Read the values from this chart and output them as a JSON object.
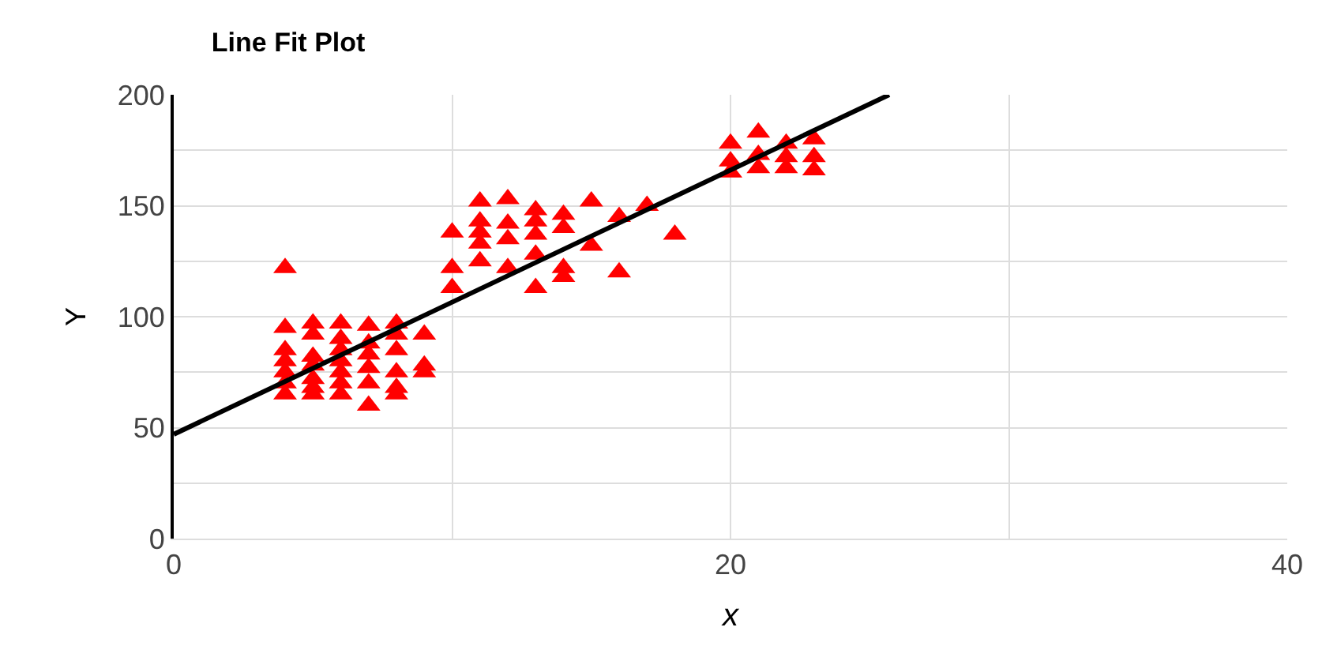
{
  "chart_data": {
    "type": "scatter",
    "title": "Line Fit Plot",
    "xlabel": "x",
    "ylabel": "Y",
    "xlim": [
      0,
      40
    ],
    "ylim": [
      0,
      200
    ],
    "xticks": [
      0,
      {
        "value": 10,
        "label": null
      },
      20,
      {
        "value": 30,
        "label": null
      },
      40
    ],
    "yticks": [
      0,
      {
        "value": 25,
        "label": null
      },
      50,
      {
        "value": 75,
        "label": null
      },
      100,
      {
        "value": 125,
        "label": null
      },
      150,
      {
        "value": 175,
        "label": null
      },
      200
    ],
    "grid": true,
    "legend": false,
    "series": [
      {
        "marker": "triangle",
        "color": "#ff0000",
        "x": [
          4,
          4,
          4,
          4,
          4,
          4,
          4,
          5,
          5,
          5,
          5,
          5,
          5,
          5,
          6,
          6,
          6,
          6,
          6,
          6,
          6,
          7,
          7,
          7,
          7,
          7,
          7,
          8,
          8,
          8,
          8,
          8,
          8,
          9,
          9,
          9,
          10,
          10,
          10,
          11,
          11,
          11,
          11,
          11,
          12,
          12,
          12,
          12,
          13,
          13,
          13,
          13,
          13,
          14,
          14,
          14,
          14,
          15,
          15,
          16,
          16,
          17,
          18,
          20,
          20,
          20,
          21,
          21,
          21,
          22,
          22,
          22,
          23,
          23,
          23
        ],
        "values": [
          122,
          95,
          85,
          80,
          75,
          70,
          65,
          97,
          92,
          82,
          78,
          72,
          68,
          65,
          97,
          90,
          85,
          80,
          75,
          70,
          65,
          96,
          88,
          83,
          77,
          70,
          60,
          97,
          92,
          85,
          75,
          68,
          65,
          92,
          78,
          75,
          138,
          122,
          113,
          152,
          143,
          138,
          133,
          125,
          153,
          142,
          135,
          122,
          148,
          143,
          137,
          128,
          113,
          146,
          140,
          122,
          118,
          152,
          132,
          145,
          120,
          150,
          137,
          178,
          170,
          165,
          183,
          173,
          167,
          178,
          172,
          167,
          180,
          172,
          166
        ]
      },
      {
        "type": "line",
        "color": "#000000",
        "line_style": "solid",
        "marker": "none",
        "x": [
          0,
          25.7
        ],
        "values": [
          47,
          200
        ]
      }
    ]
  }
}
